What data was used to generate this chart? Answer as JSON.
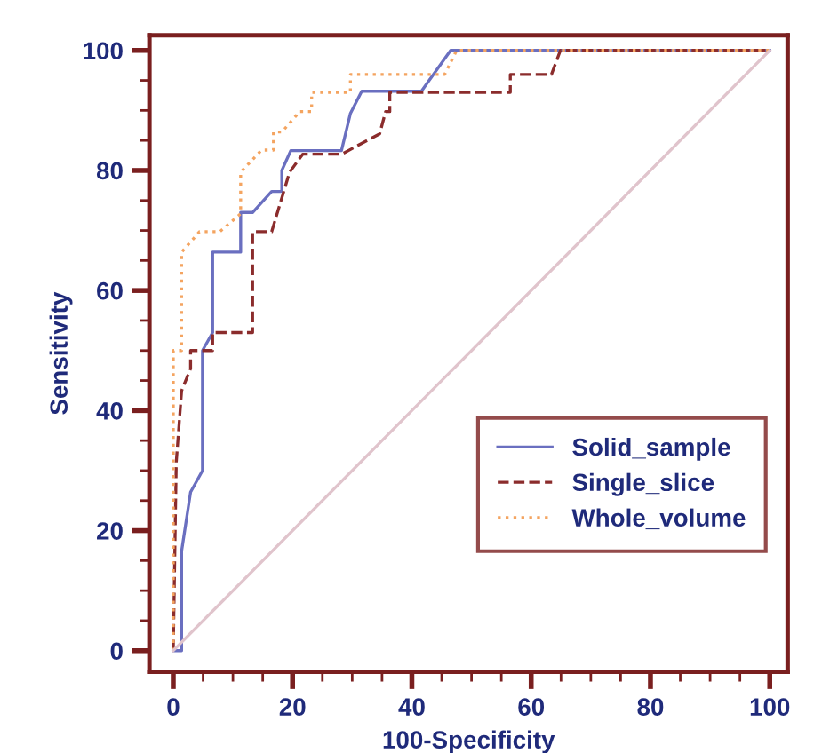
{
  "chart_data": {
    "type": "line",
    "xlabel": "100-Specificity",
    "ylabel": "Sensitivity",
    "xlim": [
      -4,
      103
    ],
    "ylim": [
      -3.5,
      102.5
    ],
    "xticks": [
      0,
      {
        "value": 5,
        "label": null
      },
      {
        "value": 10,
        "label": null
      },
      {
        "value": 15,
        "label": null
      },
      20,
      {
        "value": 25,
        "label": null
      },
      {
        "value": 30,
        "label": null
      },
      {
        "value": 35,
        "label": null
      },
      40,
      {
        "value": 45,
        "label": null
      },
      {
        "value": 50,
        "label": null
      },
      {
        "value": 55,
        "label": null
      },
      60,
      {
        "value": 65,
        "label": null
      },
      {
        "value": 70,
        "label": null
      },
      {
        "value": 75,
        "label": null
      },
      80,
      {
        "value": 85,
        "label": null
      },
      {
        "value": 90,
        "label": null
      },
      {
        "value": 95,
        "label": null
      },
      100
    ],
    "yticks": [
      0,
      {
        "value": 5,
        "label": null
      },
      {
        "value": 10,
        "label": null
      },
      {
        "value": 15,
        "label": null
      },
      20,
      {
        "value": 25,
        "label": null
      },
      {
        "value": 30,
        "label": null
      },
      {
        "value": 35,
        "label": null
      },
      40,
      {
        "value": 45,
        "label": null
      },
      {
        "value": 50,
        "label": null
      },
      {
        "value": 55,
        "label": null
      },
      60,
      {
        "value": 65,
        "label": null
      },
      {
        "value": 70,
        "label": null
      },
      {
        "value": 75,
        "label": null
      },
      80,
      {
        "value": 85,
        "label": null
      },
      {
        "value": 90,
        "label": null
      },
      {
        "value": 95,
        "label": null
      },
      100
    ],
    "grid": false,
    "legend": "bottom right",
    "marker": "none",
    "series": [
      {
        "name": "Solid_sample",
        "color": "#6a6fc0",
        "line_style": "solid",
        "x": [
          0,
          1.4,
          1.4,
          2.9,
          4.9,
          4.9,
          6.6,
          6.6,
          11.3,
          11.3,
          13.3,
          16.5,
          18.2,
          18.2,
          19.7,
          28.2,
          29.7,
          31.6,
          41.6,
          46.5,
          100
        ],
        "values": [
          0,
          0,
          16.6,
          26.4,
          30,
          50,
          53,
          66.4,
          66.4,
          73,
          73,
          76.5,
          76.5,
          80,
          83.3,
          83.3,
          89.5,
          93.2,
          93.2,
          100,
          100
        ]
      },
      {
        "name": "Single_slice",
        "color": "#8b2c2c",
        "line_style": "dashed",
        "x": [
          0,
          0.5,
          1.4,
          2.9,
          2.9,
          6.6,
          6.6,
          13.3,
          13.3,
          16.5,
          19.5,
          21.7,
          28.2,
          34.6,
          35.6,
          36.3,
          36.3,
          56.5,
          56.5,
          63.4,
          64.9,
          100
        ],
        "values": [
          0,
          31.4,
          43.3,
          47,
          50,
          50,
          53,
          53,
          69.8,
          69.8,
          79.7,
          82.7,
          82.7,
          86.1,
          89.8,
          89.8,
          93,
          93,
          96,
          96,
          100,
          100
        ]
      },
      {
        "name": "Whole_volume",
        "color": "#f4a460",
        "line_style": "dotted",
        "x": [
          0,
          0,
          1.4,
          1.4,
          4.4,
          7.8,
          11.3,
          11.3,
          14.8,
          16.8,
          16.8,
          18.2,
          21.2,
          23.2,
          23.2,
          29.7,
          29.7,
          45.5,
          47.5,
          100
        ],
        "values": [
          0,
          50,
          50,
          66.4,
          69.8,
          69.8,
          72.8,
          79.7,
          83.4,
          83.4,
          86.4,
          86.4,
          89.8,
          89.8,
          93,
          93,
          96,
          96,
          100,
          100
        ]
      },
      {
        "color": "#e0c4cc",
        "line_style": "solid",
        "x": [
          0,
          100
        ],
        "values": [
          0,
          100
        ]
      }
    ]
  }
}
